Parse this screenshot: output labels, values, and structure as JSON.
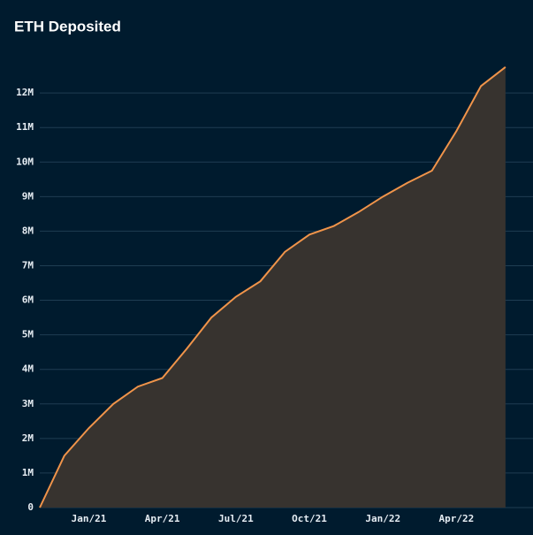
{
  "chart_data": {
    "type": "area",
    "title": "ETH Deposited",
    "x": [
      "2020-11",
      "2020-12",
      "2021-01",
      "2021-02",
      "2021-03",
      "2021-04",
      "2021-05",
      "2021-06",
      "2021-07",
      "2021-08",
      "2021-09",
      "2021-10",
      "2021-11",
      "2021-12",
      "2022-01",
      "2022-02",
      "2022-03",
      "2022-04",
      "2022-05",
      "2022-06"
    ],
    "values": [
      0,
      1500000,
      2300000,
      3000000,
      3500000,
      3750000,
      4600000,
      5500000,
      6100000,
      6550000,
      7400000,
      7900000,
      8150000,
      8550000,
      9000000,
      9400000,
      9750000,
      10900000,
      12200000,
      12750000
    ],
    "color": "#f0944a",
    "fill": "#37332f",
    "grid": true,
    "ylim": [
      0,
      12950000
    ],
    "yticks": [
      0,
      {
        "value": 1000000,
        "label": "1M"
      },
      {
        "value": 2000000,
        "label": "2M"
      },
      {
        "value": 3000000,
        "label": "3M"
      },
      {
        "value": 4000000,
        "label": "4M"
      },
      {
        "value": 5000000,
        "label": "5M"
      },
      {
        "value": 6000000,
        "label": "6M"
      },
      {
        "value": 7000000,
        "label": "7M"
      },
      {
        "value": 8000000,
        "label": "8M"
      },
      {
        "value": 9000000,
        "label": "9M"
      },
      {
        "value": 10000000,
        "label": "10M"
      },
      {
        "value": 11000000,
        "label": "11M"
      },
      {
        "value": 12000000,
        "label": "12M"
      }
    ],
    "xticks": [
      {
        "value": "2021-01",
        "label": "Jan/21"
      },
      {
        "value": "2021-04",
        "label": "Apr/21"
      },
      {
        "value": "2021-07",
        "label": "Jul/21"
      },
      {
        "value": "2021-10",
        "label": "Oct/21"
      },
      {
        "value": "2022-01",
        "label": "Jan/22"
      },
      {
        "value": "2022-04",
        "label": "Apr/22"
      }
    ]
  }
}
